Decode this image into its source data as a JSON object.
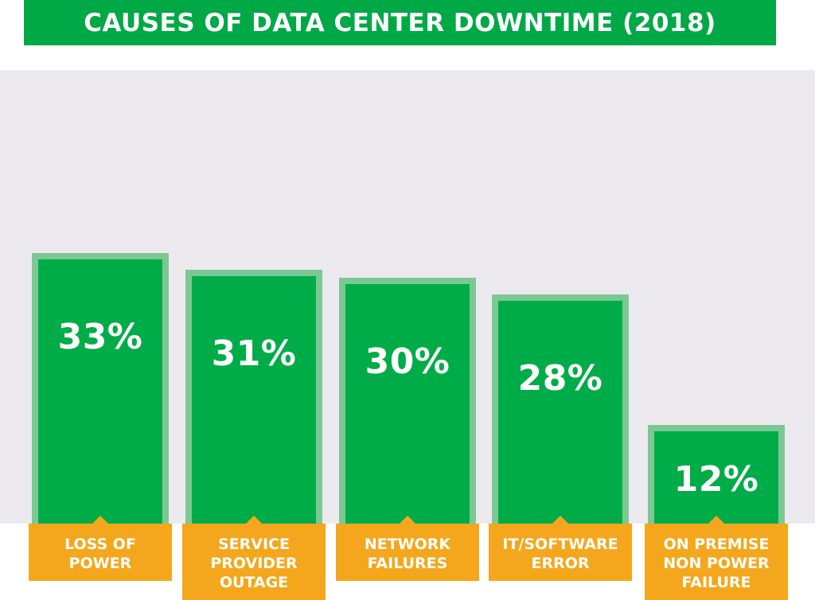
{
  "colors": {
    "banner": "#00a846",
    "bar_fill": "#00ac48",
    "bar_border": "#7cc895",
    "plot_bg": "#eceaee",
    "label_bg": "#f4a71c"
  },
  "chart_data": {
    "type": "bar",
    "title": "CAUSES OF DATA CENTER DOWNTIME (2018)",
    "categories": [
      "LOSS OF\nPOWER",
      "SERVICE\nPROVIDER\nOUTAGE",
      "NETWORK\nFAILURES",
      "IT/SOFTWARE\nERROR",
      "ON PREMISE\nNON POWER\nFAILURE"
    ],
    "values": [
      33,
      31,
      30,
      28,
      12
    ],
    "value_labels": [
      "33%",
      "31%",
      "30%",
      "28%",
      "12%"
    ],
    "xlabel": "",
    "ylabel": "",
    "ylim": [
      0,
      55
    ],
    "grid": false,
    "legend": "none"
  }
}
